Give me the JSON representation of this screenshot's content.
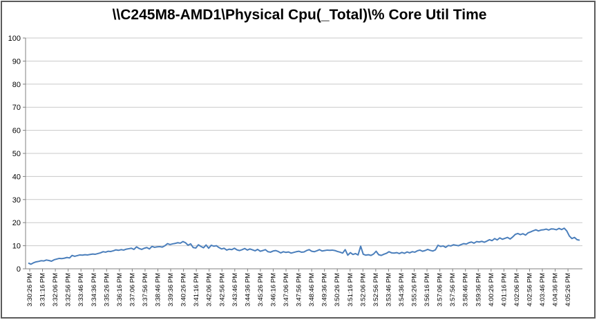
{
  "chart_data": {
    "type": "line",
    "title": "\\\\C245M8-AMD1\\Physical Cpu(_Total)\\% Core Util Time",
    "xlabel": "",
    "ylabel": "",
    "ylim": [
      0,
      100
    ],
    "yticks": [
      0,
      10,
      20,
      30,
      40,
      50,
      60,
      70,
      80,
      90,
      100
    ],
    "grid": {
      "y": true,
      "x": false
    },
    "colors": {
      "line": "#4a7ebb",
      "grid": "#c8c8c8",
      "axis": "#808080",
      "frame": "#5a5a5a"
    },
    "x_tick_labels": [
      "3:30:26 PM",
      "3:31:16 PM",
      "3:32:06 PM",
      "3:32:56 PM",
      "3:33:46 PM",
      "3:34:36 PM",
      "3:35:26 PM",
      "3:36:16 PM",
      "3:37:06 PM",
      "3:37:56 PM",
      "3:38:46 PM",
      "3:39:36 PM",
      "3:40:26 PM",
      "3:41:16 PM",
      "3:42:06 PM",
      "3:42:56 PM",
      "3:43:46 PM",
      "3:44:36 PM",
      "3:45:26 PM",
      "3:46:16 PM",
      "3:47:06 PM",
      "3:47:56 PM",
      "3:48:46 PM",
      "3:49:36 PM",
      "3:50:26 PM",
      "3:51:16 PM",
      "3:52:06 PM",
      "3:52:56 PM",
      "3:53:46 PM",
      "3:54:36 PM",
      "3:55:26 PM",
      "3:56:16 PM",
      "3:57:06 PM",
      "3:57:56 PM",
      "3:58:46 PM",
      "3:59:36 PM",
      "4:00:26 PM",
      "4:01:16 PM",
      "4:02:06 PM",
      "4:02:56 PM",
      "4:03:46 PM",
      "4:04:36 PM",
      "4:05:26 PM"
    ],
    "series": [
      {
        "values": [
          2.5,
          2.0,
          2.6,
          3.0,
          3.2,
          3.5,
          3.4,
          3.8,
          3.6,
          3.3,
          3.9,
          4.2,
          4.5,
          4.4,
          4.6,
          4.9,
          4.7,
          5.8,
          5.4,
          5.7,
          6.0,
          5.9,
          6.1,
          6.0,
          6.2,
          6.4,
          6.3,
          6.6,
          6.9,
          7.4,
          7.2,
          7.6,
          7.5,
          7.8,
          8.2,
          8.0,
          8.3,
          8.1,
          8.5,
          8.7,
          8.9,
          8.4,
          9.5,
          8.8,
          8.4,
          8.9,
          9.2,
          8.6,
          9.7,
          9.3,
          9.5,
          9.6,
          9.4,
          10.0,
          10.9,
          10.5,
          10.8,
          11.0,
          11.3,
          11.1,
          11.8,
          11.3,
          10.2,
          10.8,
          9.2,
          9.0,
          10.4,
          9.7,
          9.1,
          10.3,
          8.9,
          10.2,
          9.8,
          10.0,
          9.2,
          8.6,
          8.9,
          8.1,
          8.5,
          8.3,
          8.9,
          8.2,
          7.9,
          8.3,
          8.8,
          8.1,
          8.6,
          8.2,
          7.8,
          8.4,
          7.6,
          7.9,
          8.3,
          7.4,
          7.2,
          7.7,
          7.9,
          7.5,
          6.9,
          7.4,
          7.1,
          7.3,
          6.8,
          7.1,
          7.4,
          7.6,
          7.2,
          7.3,
          7.9,
          8.3,
          7.6,
          7.4,
          7.8,
          8.3,
          7.7,
          7.9,
          8.1,
          8.0,
          8.1,
          7.9,
          7.5,
          7.2,
          6.8,
          8.3,
          5.9,
          7.0,
          6.2,
          6.6,
          6.0,
          9.8,
          6.3,
          5.9,
          6.1,
          5.8,
          6.4,
          7.6,
          6.1,
          5.8,
          6.3,
          6.7,
          7.4,
          6.9,
          6.8,
          7.0,
          6.6,
          7.1,
          6.7,
          7.3,
          6.9,
          7.4,
          7.2,
          7.8,
          8.1,
          7.6,
          7.9,
          8.4,
          8.0,
          7.7,
          8.2,
          10.2,
          9.7,
          9.9,
          9.3,
          10.1,
          9.9,
          10.4,
          10.2,
          10.0,
          10.5,
          10.9,
          10.7,
          11.3,
          11.6,
          11.1,
          11.8,
          11.6,
          11.9,
          11.5,
          12.0,
          12.6,
          12.2,
          13.1,
          12.5,
          13.4,
          12.8,
          13.2,
          13.6,
          12.9,
          13.8,
          14.9,
          15.3,
          14.8,
          15.2,
          14.6,
          15.6,
          16.0,
          16.5,
          16.9,
          16.4,
          16.8,
          16.9,
          17.2,
          16.8,
          17.3,
          17.2,
          16.9,
          17.5,
          17.0,
          17.6,
          16.4,
          14.2,
          13.1,
          13.6,
          12.6,
          12.4
        ]
      }
    ]
  }
}
